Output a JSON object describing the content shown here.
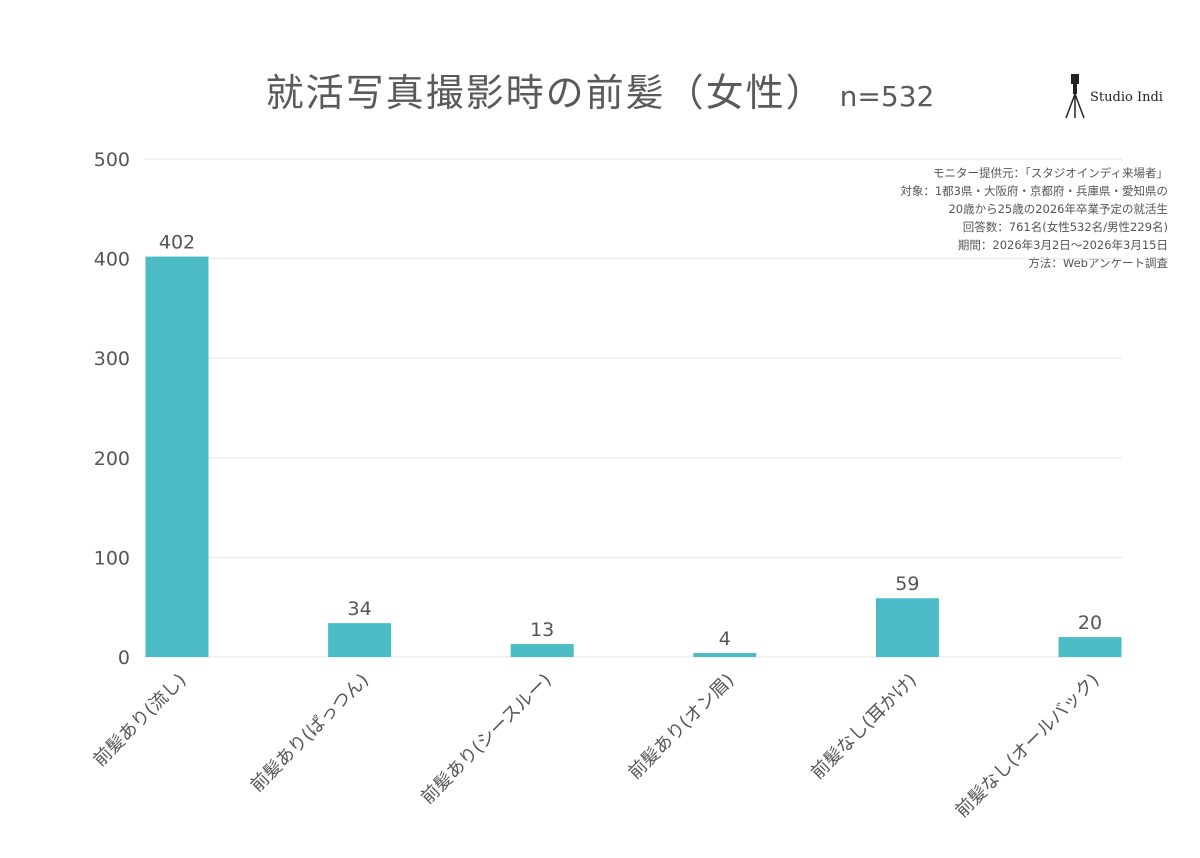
{
  "header": {
    "title": "就活写真撮影時の前髪（女性）",
    "subtitle": "n=532",
    "logo_text": "Studio Indi"
  },
  "notes": [
    "モニター提供元：「スタジオインディ来場者」",
    "対象：1都3県・大阪府・京都府・兵庫県・愛知県の",
    "20歳から25歳の2026年卒業予定の就活生",
    "回答数：761名(女性532名/男性229名)",
    "期間：2026年3月2日〜2026年3月15日",
    "方法：Webアンケート調査"
  ],
  "colors": {
    "bar": "#4bbbc6",
    "grid": "#e6e6e6",
    "text": "#555555"
  },
  "chart_data": {
    "type": "bar",
    "title": "就活写真撮影時の前髪（女性）",
    "xlabel": "",
    "ylabel": "",
    "categories": [
      "前髪あり(流し)",
      "前髪あり(ぱっつん)",
      "前髪あり(シースルー)",
      "前髪あり(オン眉)",
      "前髪なし(耳かけ)",
      "前髪なし(オールバック)"
    ],
    "values": [
      402,
      34,
      13,
      4,
      59,
      20
    ],
    "ylim": [
      0,
      500
    ],
    "yticks": [
      0,
      100,
      200,
      300,
      400,
      500
    ],
    "grid": true,
    "legend": "none",
    "data_labels": true
  }
}
